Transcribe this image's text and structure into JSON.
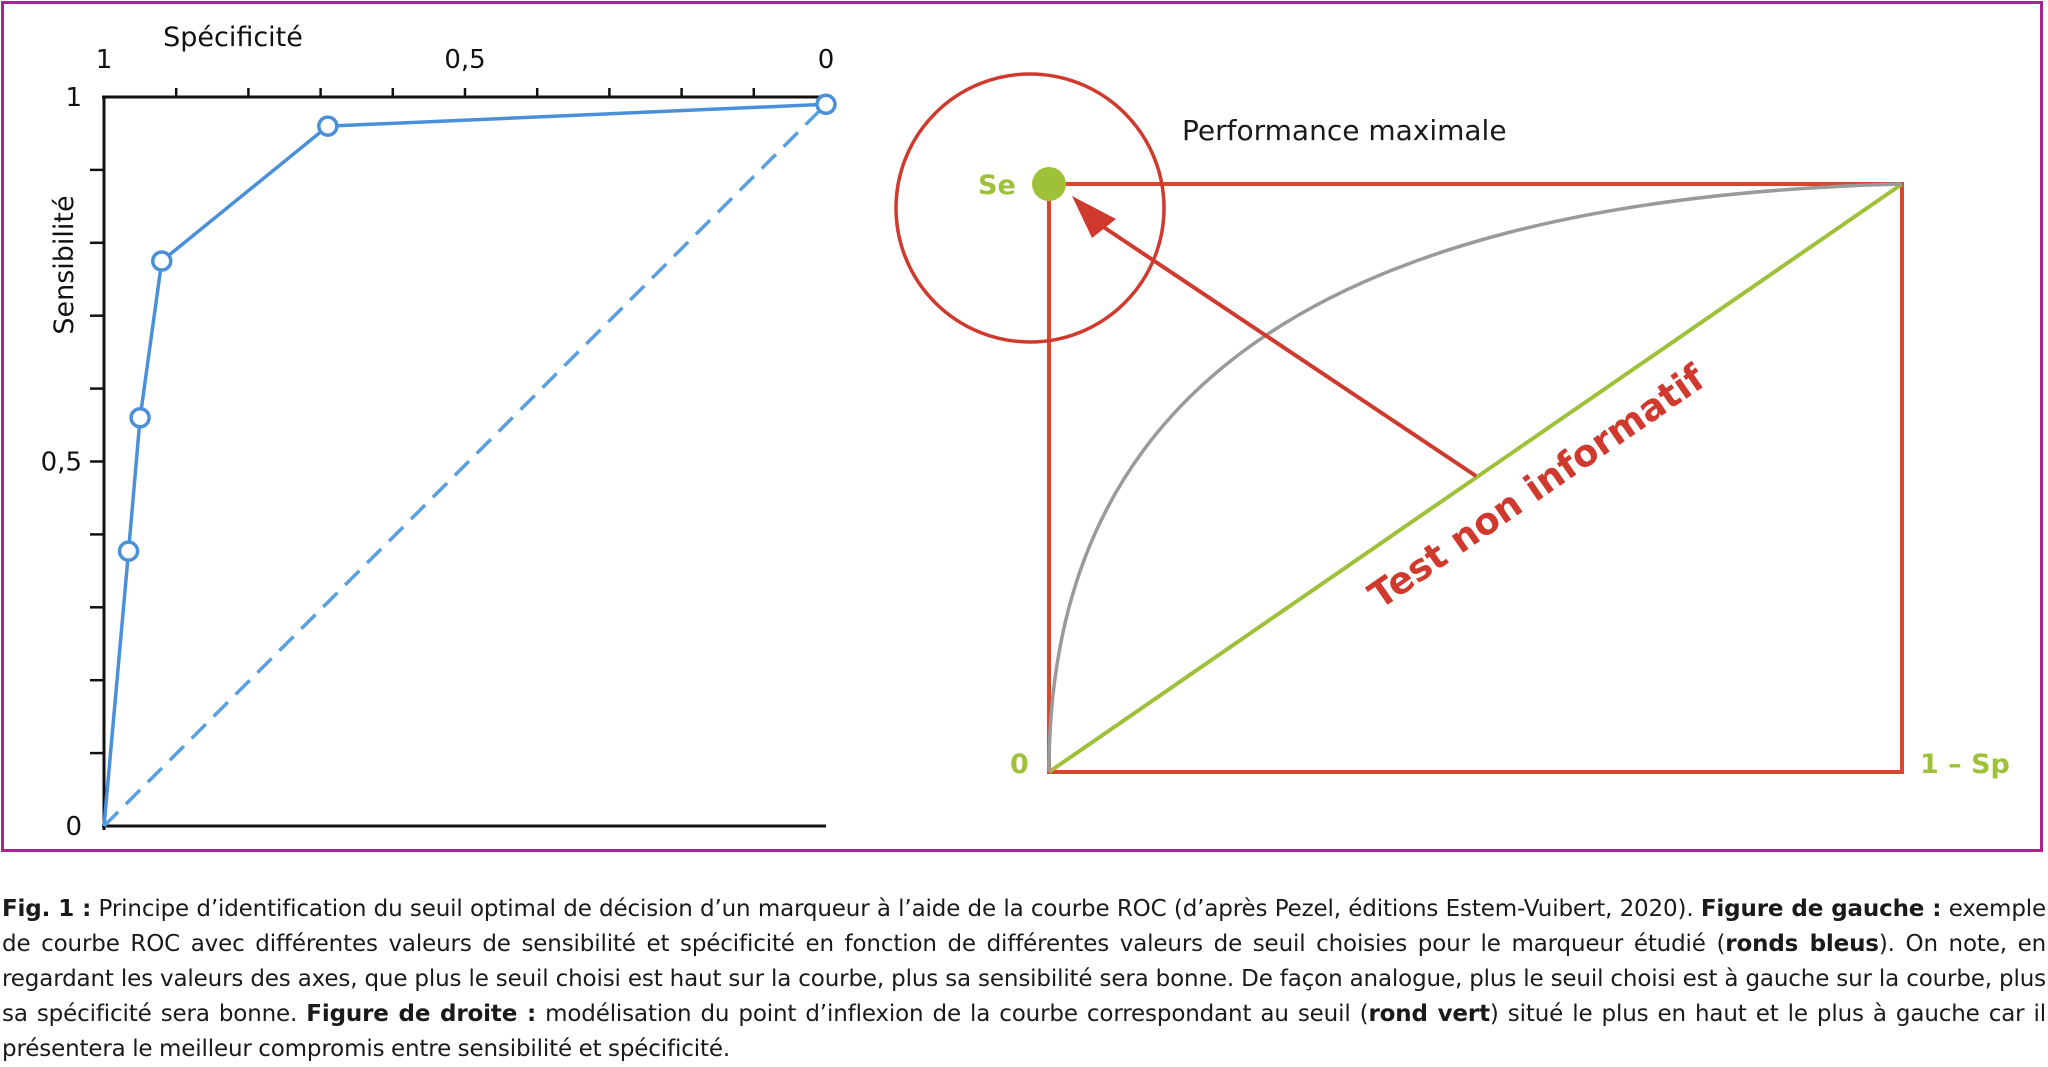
{
  "chart_data": [
    {
      "type": "line",
      "xlabel": "Spécificité",
      "ylabel": "Sensibilité",
      "x_tick_labels": [
        {
          "value": 1,
          "label": "1"
        },
        {
          "value": 0.5,
          "label": "0,5"
        },
        {
          "value": 0,
          "label": "0"
        }
      ],
      "y_tick_labels": [
        {
          "value": 1,
          "label": "1"
        },
        {
          "value": 0.5,
          "label": "0,5"
        },
        {
          "value": 0,
          "label": "0"
        }
      ],
      "x_axis_reversed": true,
      "xlim": [
        1,
        0
      ],
      "ylim": [
        0,
        1
      ],
      "series": [
        {
          "style": "solid",
          "color": "#4a90d9",
          "x": [
            1,
            0.966,
            0.95,
            0.92,
            0.69,
            0
          ],
          "y": [
            0,
            0.377,
            0.56,
            0.775,
            0.96,
            0.99
          ]
        },
        {
          "style": "dashed",
          "color": "#5aa0e0",
          "x": [
            1,
            0
          ],
          "y": [
            0,
            0.99
          ]
        }
      ],
      "marker_points": [
        {
          "x": 0.966,
          "y": 0.377
        },
        {
          "x": 0.95,
          "y": 0.56
        },
        {
          "x": 0.92,
          "y": 0.775
        },
        {
          "x": 0.69,
          "y": 0.96
        },
        {
          "x": 0,
          "y": 0.99
        }
      ]
    },
    {
      "type": "diagram",
      "labels": {
        "top_left": "Se",
        "origin": "0",
        "bottom_right": "1 – Sp",
        "circle_label": "Performance maximale",
        "diagonal_label": "Test non informatif"
      },
      "colors": {
        "box": "#d9462e",
        "diagonal": "#9fc13a",
        "curve": "#9a9a9a",
        "arrow": "#d03a2e",
        "circle": "#d03a2e",
        "point": "#9fc13a",
        "label_green": "#9fc13a",
        "label_red": "#d03a2e"
      }
    }
  ],
  "caption": {
    "p1_bold": "Fig. 1 :",
    "p1_text": " Principe d’identification du seuil optimal de décision d’un marqueur à l’aide de la courbe ROC (d’après Pezel, éditions Estem-Vuibert, 2020). ",
    "p2_bold": "Figure de gauche :",
    "p2_text": " exemple de courbe ROC avec différentes valeurs de sensibilité et spécificité en fonction de différentes valeurs de seuil choisies pour le marqueur étudié (",
    "p3_bold": "ronds bleus",
    "p3_text": "). On note, en regardant les valeurs des axes, que plus le seuil choisi est haut sur la courbe, plus sa sensibilité sera bonne. De façon analogue, plus le seuil choisi est à gauche sur la courbe, plus sa spécificité sera bonne. ",
    "p4_bold": "Figure de droite :",
    "p4_text": " modélisation du point d’inflexion de la courbe correspondant au seuil (",
    "p5_bold": "rond vert",
    "p5_text": ") situé le plus en haut et le plus à gauche car il présentera le meilleur compromis entre sensibilité et spécificité."
  }
}
